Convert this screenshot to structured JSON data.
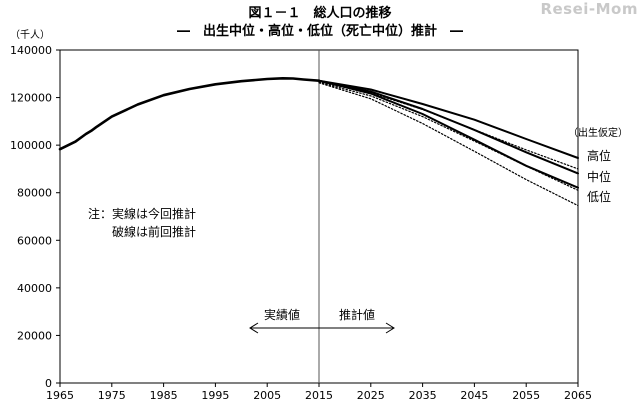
{
  "header": {
    "title": "図１－１　総人口の推移",
    "subtitle": "―　出生中位・高位・低位（死亡中位）推計　―"
  },
  "watermark": "Resei-Mom",
  "chart_data": {
    "type": "line",
    "ylabel": "（千人）",
    "xlabel": "",
    "xlim": [
      1965,
      2065
    ],
    "ylim": [
      0,
      140000
    ],
    "x_ticks": [
      1965,
      1975,
      1985,
      1995,
      2005,
      2015,
      2025,
      2035,
      2045,
      2055,
      2065
    ],
    "y_ticks": [
      0,
      20000,
      40000,
      60000,
      80000,
      100000,
      120000,
      140000
    ],
    "grid": false,
    "divider_year": 2015,
    "annotations": {
      "note_line1": "注：実線は今回推計",
      "note_line2": "破線は前回推計",
      "actual_label": "実績値",
      "projection_label": "推計値",
      "legend_heading": "（出生仮定）",
      "high_label": "高位",
      "mid_label": "中位",
      "low_label": "低位"
    },
    "series": [
      {
        "style": "solid",
        "x": [
          1965,
          1968,
          1970,
          1971,
          1972,
          1975,
          1980,
          1985,
          1990,
          1995,
          2000,
          2005,
          2008,
          2010,
          2012,
          2015
        ],
        "values": [
          98300,
          101500,
          104700,
          106000,
          107600,
          112000,
          117100,
          121000,
          123600,
          125600,
          126900,
          127800,
          128100,
          128000,
          127600,
          127100
        ]
      },
      {
        "style": "solid",
        "x": [
          2015,
          2025,
          2035,
          2045,
          2055,
          2065
        ],
        "values": [
          127100,
          123400,
          117300,
          110700,
          102600,
          94600
        ]
      },
      {
        "style": "solid",
        "x": [
          2015,
          2025,
          2035,
          2045,
          2055,
          2065
        ],
        "values": [
          127100,
          122500,
          115200,
          106400,
          97000,
          88100
        ]
      },
      {
        "style": "solid",
        "x": [
          2015,
          2025,
          2035,
          2045,
          2055,
          2065
        ],
        "values": [
          127100,
          121700,
          113100,
          102300,
          91300,
          82100
        ]
      },
      {
        "style": "dotted",
        "x": [
          2015,
          2025,
          2035,
          2045,
          2055,
          2065
        ],
        "values": [
          126600,
          122000,
          115000,
          106500,
          98000,
          90000
        ]
      },
      {
        "style": "dotted",
        "x": [
          2015,
          2025,
          2035,
          2045,
          2055,
          2065
        ],
        "values": [
          126400,
          120700,
          112000,
          101700,
          91200,
          81000
        ]
      },
      {
        "style": "dotted",
        "x": [
          2015,
          2025,
          2035,
          2045,
          2055,
          2065
        ],
        "values": [
          126200,
          119500,
          109100,
          97400,
          85500,
          74600
        ]
      }
    ]
  }
}
